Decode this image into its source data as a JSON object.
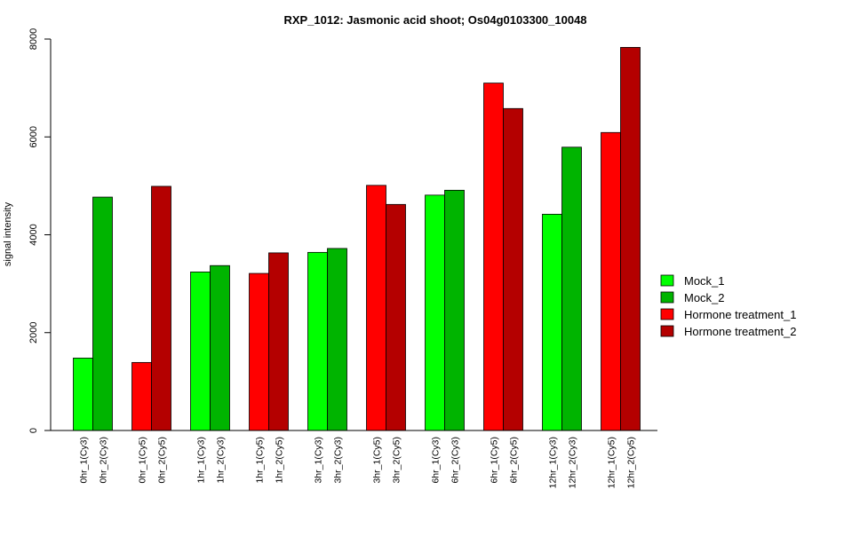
{
  "chart_data": {
    "type": "bar",
    "title": "RXP_1012: Jasmonic acid shoot; Os04g0103300_10048",
    "xlabel": "",
    "ylabel": "signal intensity",
    "ylim": [
      0,
      8000
    ],
    "yticks": [
      0,
      2000,
      4000,
      6000,
      8000
    ],
    "grid": false,
    "legend_position": "right",
    "legend": [
      {
        "label": "Mock_1",
        "color": "#00FF00"
      },
      {
        "label": "Mock_2",
        "color": "#00B400"
      },
      {
        "label": "Hormone treatment_1",
        "color": "#FF0000"
      },
      {
        "label": "Hormone treatment_2",
        "color": "#B40000"
      }
    ],
    "bars": [
      {
        "label": "0hr_1(Cy3)",
        "value": 1480,
        "color": "#00FF00"
      },
      {
        "label": "0hr_2(Cy3)",
        "value": 4770,
        "color": "#00B400"
      },
      {
        "label": "0hr_1(Cy5)",
        "value": 1390,
        "color": "#FF0000"
      },
      {
        "label": "0hr_2(Cy5)",
        "value": 4990,
        "color": "#B40000"
      },
      {
        "label": "1hr_1(Cy3)",
        "value": 3240,
        "color": "#00FF00"
      },
      {
        "label": "1hr_2(Cy3)",
        "value": 3370,
        "color": "#00B400"
      },
      {
        "label": "1hr_1(Cy5)",
        "value": 3210,
        "color": "#FF0000"
      },
      {
        "label": "1hr_2(Cy5)",
        "value": 3630,
        "color": "#B40000"
      },
      {
        "label": "3hr_1(Cy3)",
        "value": 3640,
        "color": "#00FF00"
      },
      {
        "label": "3hr_2(Cy3)",
        "value": 3720,
        "color": "#00B400"
      },
      {
        "label": "3hr_1(Cy5)",
        "value": 5010,
        "color": "#FF0000"
      },
      {
        "label": "3hr_2(Cy5)",
        "value": 4620,
        "color": "#B40000"
      },
      {
        "label": "6hr_1(Cy3)",
        "value": 4810,
        "color": "#00FF00"
      },
      {
        "label": "6hr_2(Cy3)",
        "value": 4910,
        "color": "#00B400"
      },
      {
        "label": "6hr_1(Cy5)",
        "value": 7100,
        "color": "#FF0000"
      },
      {
        "label": "6hr_2(Cy5)",
        "value": 6580,
        "color": "#B40000"
      },
      {
        "label": "12hr_1(Cy3)",
        "value": 4420,
        "color": "#00FF00"
      },
      {
        "label": "12hr_2(Cy3)",
        "value": 5790,
        "color": "#00B400"
      },
      {
        "label": "12hr_1(Cy5)",
        "value": 6090,
        "color": "#FF0000"
      },
      {
        "label": "12hr_2(Cy5)",
        "value": 7830,
        "color": "#B40000"
      }
    ]
  }
}
